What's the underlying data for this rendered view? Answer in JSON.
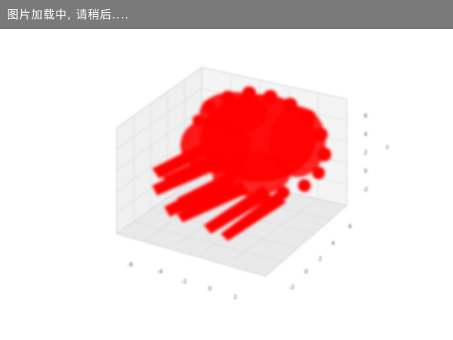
{
  "banner": {
    "text": "图片加载中, 请稍后...."
  },
  "chart_data": {
    "type": "scatter",
    "projection": "3d",
    "title": "",
    "marker_color": "#ff0000",
    "grid": true,
    "z_axis": {
      "label": "z",
      "ticks": [
        "6",
        "4",
        "2",
        "0",
        "-2"
      ]
    },
    "x_axis": {
      "ticks": [
        "-6",
        "-4",
        "-2",
        "0",
        "2"
      ]
    },
    "y_axis": {
      "ticks": [
        "6",
        "4",
        "2",
        "0",
        "-2"
      ]
    }
  }
}
